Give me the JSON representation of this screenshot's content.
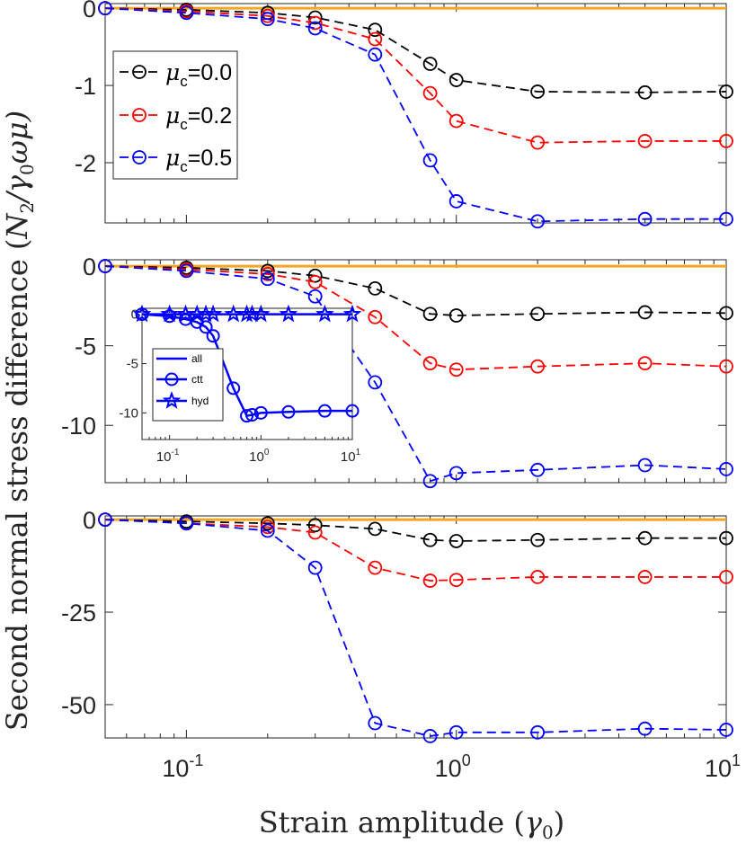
{
  "figure": {
    "xlabel": "Strain amplitude (γ0)",
    "xlabel_pre": "Strain amplitude (",
    "xlabel_sym": "γ",
    "xlabel_sub": "0",
    "xlabel_post": ")",
    "ylabel": "Second normal stress difference (N2/γ0ωμ)",
    "ylabel_pre": "Second normal stress difference (",
    "ylabel_sym": "N",
    "ylabel_sub1": "2",
    "ylabel_mid": "/γ",
    "ylabel_sub2": "0",
    "ylabel_post": "ωμ)"
  },
  "legend": {
    "symbol": "μ",
    "subscript": "c",
    "entries": [
      {
        "value": "=0.0",
        "color": "#000000"
      },
      {
        "value": "=0.2",
        "color": "#ff0000"
      },
      {
        "value": "=0.5",
        "color": "#0000ff"
      }
    ]
  },
  "colors": {
    "black": "#000000",
    "red": "#ff0000",
    "blue": "#0000ff",
    "orange": "#f5a623",
    "axis": "#262626"
  },
  "chart_data": [
    {
      "type": "line",
      "xscale": "log",
      "x": [
        0.05,
        0.1,
        0.2,
        0.3,
        0.5,
        0.8,
        1,
        2,
        5,
        10
      ],
      "xlim": [
        0.05,
        10
      ],
      "ylim": [
        -2.78,
        0.06
      ],
      "yticks": [
        0,
        -1,
        -2
      ],
      "ytick_labels": [
        "0",
        "-1",
        "-2"
      ],
      "xticks": [
        0.1,
        1,
        10
      ],
      "legend_position": "upper-left",
      "reference_line": {
        "y": 0,
        "color": "#f5a623"
      },
      "series": [
        {
          "name": "μc=0.0",
          "color": "#000000",
          "values": [
            0,
            -0.02,
            -0.06,
            -0.12,
            -0.28,
            -0.72,
            -0.93,
            -1.08,
            -1.09,
            -1.08
          ]
        },
        {
          "name": "μc=0.2",
          "color": "#ff0000",
          "values": [
            0,
            -0.04,
            -0.1,
            -0.19,
            -0.4,
            -1.1,
            -1.46,
            -1.74,
            -1.72,
            -1.72
          ]
        },
        {
          "name": "μc=0.5",
          "color": "#0000ff",
          "values": [
            0,
            -0.06,
            -0.14,
            -0.26,
            -0.6,
            -1.97,
            -2.5,
            -2.76,
            -2.73,
            -2.73
          ]
        }
      ]
    },
    {
      "type": "line",
      "xscale": "log",
      "x": [
        0.05,
        0.1,
        0.2,
        0.3,
        0.5,
        0.8,
        1,
        2,
        5,
        10
      ],
      "xlim": [
        0.05,
        10
      ],
      "ylim": [
        -13.6,
        0.4
      ],
      "yticks": [
        0,
        -5,
        -10
      ],
      "ytick_labels": [
        "0",
        "-5",
        "-10"
      ],
      "xticks": [
        0.1,
        1,
        10
      ],
      "reference_line": {
        "y": 0,
        "color": "#f5a623"
      },
      "series": [
        {
          "name": "μc=0.0",
          "color": "#000000",
          "values": [
            0,
            -0.1,
            -0.3,
            -0.6,
            -1.4,
            -3,
            -3.1,
            -3,
            -2.9,
            -2.95
          ]
        },
        {
          "name": "μc=0.2",
          "color": "#ff0000",
          "values": [
            0,
            -0.2,
            -0.5,
            -1,
            -3.2,
            -6.1,
            -6.5,
            -6.3,
            -6.1,
            -6.3
          ]
        },
        {
          "name": "μc=0.5",
          "color": "#0000ff",
          "values": [
            0,
            -0.3,
            -0.8,
            -1.9,
            -7.3,
            -13.5,
            -13,
            -12.8,
            -12.5,
            -12.75
          ]
        }
      ],
      "inset": {
        "xscale": "log",
        "x": [
          0.05,
          0.1,
          0.15,
          0.2,
          0.25,
          0.3,
          0.5,
          0.7,
          0.8,
          1,
          2,
          5,
          10
        ],
        "xlim": [
          0.05,
          10
        ],
        "ylim": [
          -12.7,
          0.6
        ],
        "yticks": [
          0,
          -5,
          -10
        ],
        "ytick_labels": [
          "0",
          "-5",
          "-10"
        ],
        "xticks": [
          0.1,
          1,
          10
        ],
        "legend_position": "lower-left",
        "legend": [
          "all",
          "ctt",
          "hyd"
        ],
        "series": [
          {
            "name": "all",
            "style": "solid-line",
            "color": "#0000ff",
            "values": [
              0,
              -0.2,
              -0.5,
              -0.8,
              -1.3,
              -2.2,
              -7.5,
              -10.3,
              -10.2,
              -10,
              -9.9,
              -9.8,
              -9.8
            ]
          },
          {
            "name": "ctt",
            "style": "circle-marker",
            "color": "#0000ff",
            "values": [
              0,
              -0.2,
              -0.5,
              -0.8,
              -1.3,
              -2.2,
              -7.5,
              -10.3,
              -10.2,
              -10,
              -9.9,
              -9.8,
              -9.8
            ]
          },
          {
            "name": "hyd",
            "style": "star-marker",
            "color": "#0000ff",
            "values": [
              0,
              0,
              0,
              0,
              0,
              0,
              0,
              0,
              0,
              0,
              0,
              0,
              0
            ]
          }
        ]
      }
    },
    {
      "type": "line",
      "xscale": "log",
      "x": [
        0.05,
        0.1,
        0.2,
        0.3,
        0.5,
        0.8,
        1,
        2,
        5,
        10
      ],
      "xlim": [
        0.05,
        10
      ],
      "ylim": [
        -59,
        1
      ],
      "yticks": [
        0,
        -25,
        -50
      ],
      "ytick_labels": [
        "0",
        "-25",
        "-50"
      ],
      "xticks": [
        0.1,
        1,
        10
      ],
      "xtick_base": "10",
      "xtick_exponents": [
        "-1",
        "0",
        "1"
      ],
      "reference_line": {
        "y": 0,
        "color": "#f5a623"
      },
      "series": [
        {
          "name": "μc=0.0",
          "color": "#000000",
          "values": [
            0,
            -0.5,
            -1,
            -1.5,
            -2.5,
            -5.5,
            -5.8,
            -5.5,
            -5,
            -5
          ]
        },
        {
          "name": "μc=0.2",
          "color": "#ff0000",
          "values": [
            0,
            -1,
            -2,
            -3.5,
            -13,
            -16.5,
            -16.3,
            -15.5,
            -15.5,
            -15.5
          ]
        },
        {
          "name": "μc=0.5",
          "color": "#0000ff",
          "values": [
            0,
            -1,
            -3,
            -13,
            -55,
            -58.5,
            -57.5,
            -57.5,
            -56.5,
            -56.8
          ]
        }
      ]
    }
  ]
}
